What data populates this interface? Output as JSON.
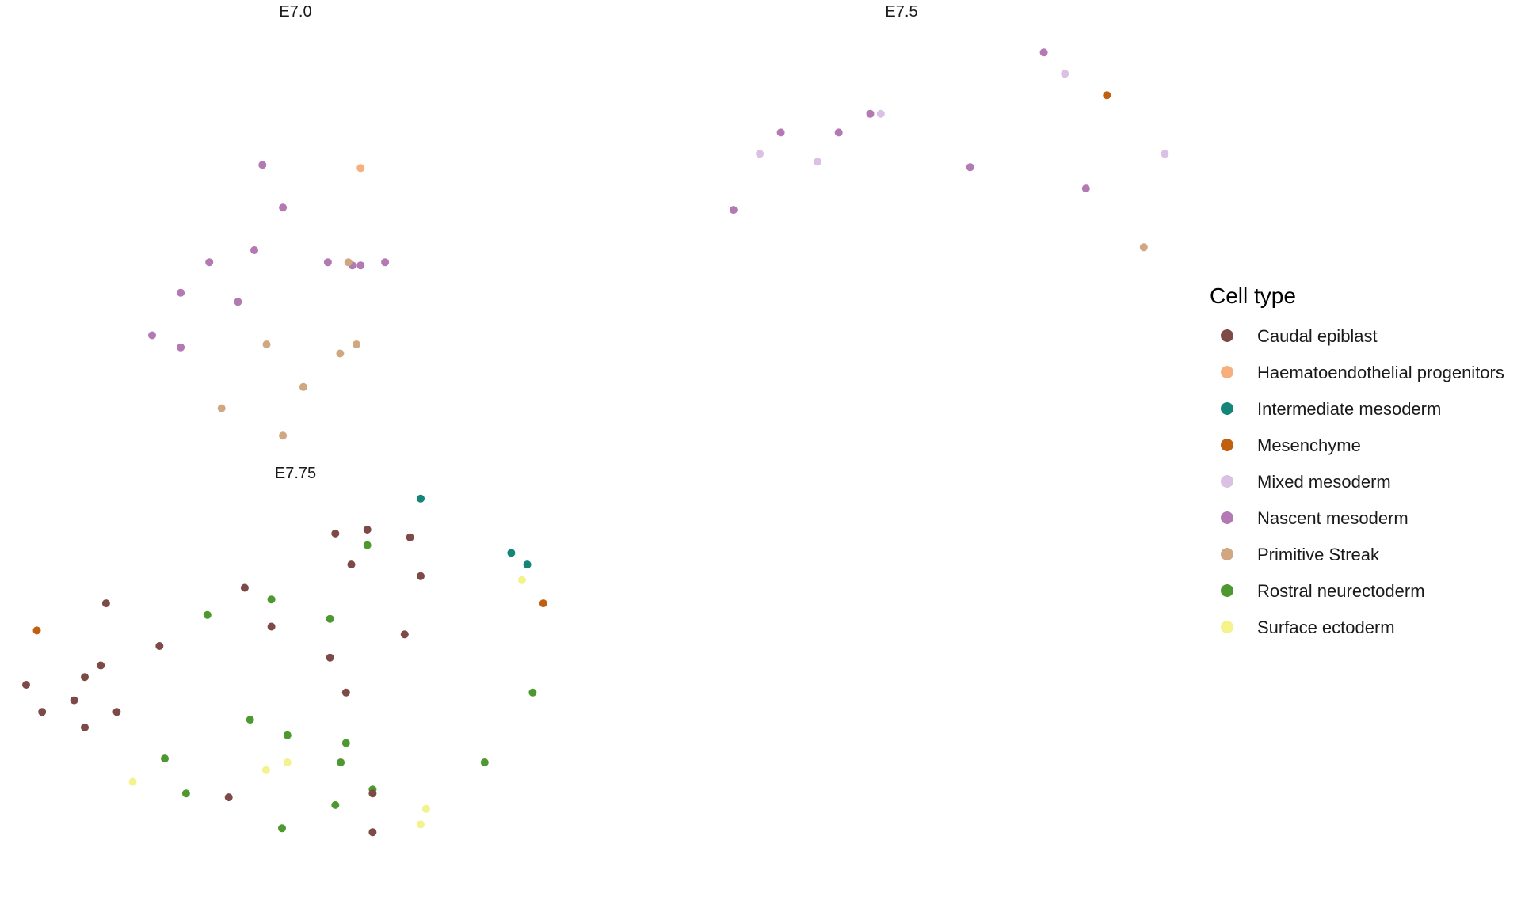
{
  "chart_data": {
    "type": "scatter",
    "grid": false,
    "legend": {
      "title": "Cell type",
      "placement": "right",
      "entries": [
        {
          "name": "Caudal epiblast",
          "color": "#7E4A47"
        },
        {
          "name": "Haematoendothelial progenitors",
          "color": "#F7AF7E"
        },
        {
          "name": "Intermediate mesoderm",
          "color": "#138679"
        },
        {
          "name": "Mesenchyme",
          "color": "#C0600E"
        },
        {
          "name": "Mixed mesoderm",
          "color": "#DAC0E2"
        },
        {
          "name": "Nascent mesoderm",
          "color": "#B279B2"
        },
        {
          "name": "Primitive Streak",
          "color": "#CFA882"
        },
        {
          "name": "Rostral neurectoderm",
          "color": "#4E992F"
        },
        {
          "name": "Surface ectoderm",
          "color": "#F4F28B"
        }
      ]
    },
    "panels": [
      {
        "title": "E7.0",
        "xlim": [
          0,
          100
        ],
        "ylim": [
          0,
          100
        ],
        "points": [
          {
            "x": 51,
            "y": 83,
            "type": "Haematoendothelial progenitors"
          },
          {
            "x": 27,
            "y": 84,
            "type": "Nascent mesoderm"
          },
          {
            "x": 32,
            "y": 70,
            "type": "Nascent mesoderm"
          },
          {
            "x": 25,
            "y": 56,
            "type": "Nascent mesoderm"
          },
          {
            "x": 14,
            "y": 52,
            "type": "Nascent mesoderm"
          },
          {
            "x": 7,
            "y": 42,
            "type": "Nascent mesoderm"
          },
          {
            "x": 21,
            "y": 39,
            "type": "Nascent mesoderm"
          },
          {
            "x": 0,
            "y": 28,
            "type": "Nascent mesoderm"
          },
          {
            "x": 7,
            "y": 24,
            "type": "Nascent mesoderm"
          },
          {
            "x": 43,
            "y": 52,
            "type": "Nascent mesoderm"
          },
          {
            "x": 49,
            "y": 51,
            "type": "Nascent mesoderm"
          },
          {
            "x": 51,
            "y": 51,
            "type": "Nascent mesoderm"
          },
          {
            "x": 57,
            "y": 52,
            "type": "Nascent mesoderm"
          },
          {
            "x": 48,
            "y": 52,
            "type": "Primitive Streak"
          },
          {
            "x": 28,
            "y": 25,
            "type": "Primitive Streak"
          },
          {
            "x": 50,
            "y": 25,
            "type": "Primitive Streak"
          },
          {
            "x": 46,
            "y": 22,
            "type": "Primitive Streak"
          },
          {
            "x": 37,
            "y": 11,
            "type": "Primitive Streak"
          },
          {
            "x": 17,
            "y": 4,
            "type": "Primitive Streak"
          },
          {
            "x": 32,
            "y": -5,
            "type": "Primitive Streak"
          }
        ]
      },
      {
        "title": "E7.5",
        "xlim": [
          0,
          100
        ],
        "ylim": [
          0,
          100
        ],
        "points": [
          {
            "x": 76,
            "y": 102,
            "type": "Nascent mesoderm"
          },
          {
            "x": 80,
            "y": 94,
            "type": "Mixed mesoderm"
          },
          {
            "x": 88,
            "y": 86,
            "type": "Mesenchyme"
          },
          {
            "x": 43,
            "y": 79,
            "type": "Nascent mesoderm"
          },
          {
            "x": 45,
            "y": 79,
            "type": "Mixed mesoderm"
          },
          {
            "x": 26,
            "y": 72,
            "type": "Nascent mesoderm"
          },
          {
            "x": 37,
            "y": 72,
            "type": "Nascent mesoderm"
          },
          {
            "x": 22,
            "y": 64,
            "type": "Mixed mesoderm"
          },
          {
            "x": 33,
            "y": 61,
            "type": "Mixed mesoderm"
          },
          {
            "x": 62,
            "y": 59,
            "type": "Nascent mesoderm"
          },
          {
            "x": 99,
            "y": 64,
            "type": "Mixed mesoderm"
          },
          {
            "x": 84,
            "y": 51,
            "type": "Nascent mesoderm"
          },
          {
            "x": 17,
            "y": 43,
            "type": "Nascent mesoderm"
          },
          {
            "x": 95,
            "y": 29,
            "type": "Primitive Streak"
          }
        ]
      },
      {
        "title": "E7.75",
        "xlim": [
          0,
          100
        ],
        "ylim": [
          0,
          100
        ],
        "points": [
          {
            "x": 74,
            "y": 98,
            "type": "Intermediate mesoderm"
          },
          {
            "x": 91,
            "y": 84,
            "type": "Intermediate mesoderm"
          },
          {
            "x": 94,
            "y": 81,
            "type": "Intermediate mesoderm"
          },
          {
            "x": 64,
            "y": 90,
            "type": "Caudal epiblast"
          },
          {
            "x": 58,
            "y": 89,
            "type": "Caudal epiblast"
          },
          {
            "x": 72,
            "y": 88,
            "type": "Caudal epiblast"
          },
          {
            "x": 64,
            "y": 86,
            "type": "Rostral neurectoderm"
          },
          {
            "x": 61,
            "y": 81,
            "type": "Caudal epiblast"
          },
          {
            "x": 74,
            "y": 78,
            "type": "Caudal epiblast"
          },
          {
            "x": 93,
            "y": 77,
            "type": "Surface ectoderm"
          },
          {
            "x": 97,
            "y": 71,
            "type": "Mesenchyme"
          },
          {
            "x": 41,
            "y": 75,
            "type": "Caudal epiblast"
          },
          {
            "x": 15,
            "y": 71,
            "type": "Caudal epiblast"
          },
          {
            "x": 46,
            "y": 72,
            "type": "Rostral neurectoderm"
          },
          {
            "x": 34,
            "y": 68,
            "type": "Rostral neurectoderm"
          },
          {
            "x": 57,
            "y": 67,
            "type": "Rostral neurectoderm"
          },
          {
            "x": 46,
            "y": 65,
            "type": "Caudal epiblast"
          },
          {
            "x": 71,
            "y": 63,
            "type": "Caudal epiblast"
          },
          {
            "x": 2,
            "y": 64,
            "type": "Mesenchyme"
          },
          {
            "x": 25,
            "y": 60,
            "type": "Caudal epiblast"
          },
          {
            "x": 57,
            "y": 57,
            "type": "Caudal epiblast"
          },
          {
            "x": 14,
            "y": 55,
            "type": "Caudal epiblast"
          },
          {
            "x": 11,
            "y": 52,
            "type": "Caudal epiblast"
          },
          {
            "x": 0,
            "y": 50,
            "type": "Caudal epiblast"
          },
          {
            "x": 60,
            "y": 48,
            "type": "Caudal epiblast"
          },
          {
            "x": 95,
            "y": 48,
            "type": "Rostral neurectoderm"
          },
          {
            "x": 9,
            "y": 46,
            "type": "Caudal epiblast"
          },
          {
            "x": 3,
            "y": 43,
            "type": "Caudal epiblast"
          },
          {
            "x": 17,
            "y": 43,
            "type": "Caudal epiblast"
          },
          {
            "x": 11,
            "y": 39,
            "type": "Caudal epiblast"
          },
          {
            "x": 42,
            "y": 41,
            "type": "Rostral neurectoderm"
          },
          {
            "x": 49,
            "y": 37,
            "type": "Rostral neurectoderm"
          },
          {
            "x": 60,
            "y": 35,
            "type": "Rostral neurectoderm"
          },
          {
            "x": 26,
            "y": 31,
            "type": "Rostral neurectoderm"
          },
          {
            "x": 49,
            "y": 30,
            "type": "Surface ectoderm"
          },
          {
            "x": 59,
            "y": 30,
            "type": "Rostral neurectoderm"
          },
          {
            "x": 86,
            "y": 30,
            "type": "Rostral neurectoderm"
          },
          {
            "x": 45,
            "y": 28,
            "type": "Surface ectoderm"
          },
          {
            "x": 20,
            "y": 25,
            "type": "Surface ectoderm"
          },
          {
            "x": 65,
            "y": 23,
            "type": "Rostral neurectoderm"
          },
          {
            "x": 30,
            "y": 22,
            "type": "Rostral neurectoderm"
          },
          {
            "x": 38,
            "y": 21,
            "type": "Caudal epiblast"
          },
          {
            "x": 65,
            "y": 22,
            "type": "Caudal epiblast"
          },
          {
            "x": 58,
            "y": 19,
            "type": "Rostral neurectoderm"
          },
          {
            "x": 75,
            "y": 18,
            "type": "Surface ectoderm"
          },
          {
            "x": 48,
            "y": 13,
            "type": "Rostral neurectoderm"
          },
          {
            "x": 74,
            "y": 14,
            "type": "Surface ectoderm"
          },
          {
            "x": 65,
            "y": 12,
            "type": "Caudal epiblast"
          }
        ]
      }
    ]
  }
}
